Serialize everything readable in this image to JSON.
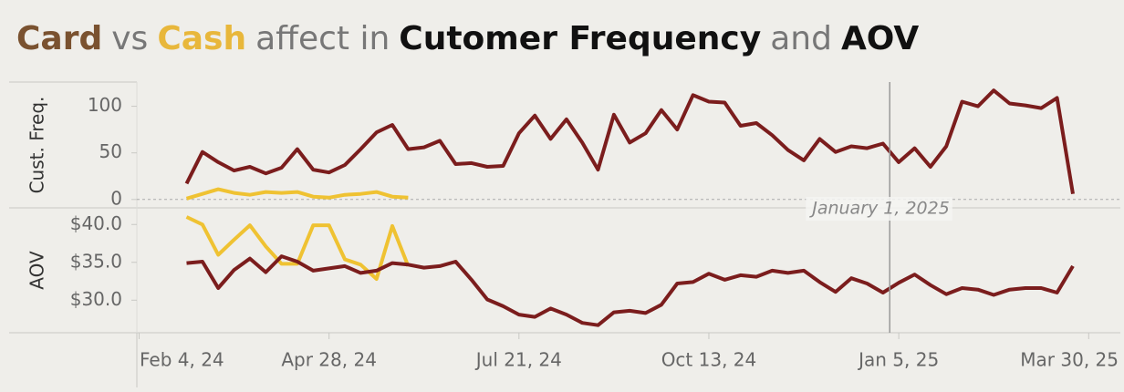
{
  "chart_data": {
    "type": "line",
    "title": [
      {
        "text": "Card",
        "color": "#7a5230",
        "bold": true
      },
      {
        "text": "vs",
        "color": "#777777",
        "bold": false
      },
      {
        "text": "Cash",
        "color": "#e8b73b",
        "bold": true
      },
      {
        "text": "affect in",
        "color": "#777777",
        "bold": false
      },
      {
        "text": "Cutomer Frequency",
        "color": "#111111",
        "bold": true
      },
      {
        "text": "and",
        "color": "#777777",
        "bold": false
      },
      {
        "text": "AOV",
        "color": "#111111",
        "bold": true
      }
    ],
    "x": [
      "2024-02-25",
      "2024-03-03",
      "2024-03-10",
      "2024-03-17",
      "2024-03-24",
      "2024-03-31",
      "2024-04-07",
      "2024-04-14",
      "2024-04-21",
      "2024-04-28",
      "2024-05-05",
      "2024-05-12",
      "2024-05-19",
      "2024-05-26",
      "2024-06-02",
      "2024-06-09",
      "2024-06-16",
      "2024-06-23",
      "2024-06-30",
      "2024-07-07",
      "2024-07-14",
      "2024-07-21",
      "2024-07-28",
      "2024-08-04",
      "2024-08-11",
      "2024-08-18",
      "2024-08-25",
      "2024-09-01",
      "2024-09-08",
      "2024-09-15",
      "2024-09-22",
      "2024-09-29",
      "2024-10-06",
      "2024-10-13",
      "2024-10-20",
      "2024-10-27",
      "2024-11-03",
      "2024-11-10",
      "2024-11-17",
      "2024-11-24",
      "2024-12-01",
      "2024-12-08",
      "2024-12-15",
      "2024-12-22",
      "2024-12-29",
      "2025-01-05",
      "2025-01-12",
      "2025-01-19",
      "2025-01-26",
      "2025-02-02",
      "2025-02-09",
      "2025-02-16",
      "2025-02-23",
      "2025-03-02",
      "2025-03-09",
      "2025-03-16",
      "2025-03-23"
    ],
    "xlim": [
      "2024-02-03",
      "2025-04-13"
    ],
    "xticks": [
      {
        "value": "2024-02-04",
        "label": "Feb 4, 24"
      },
      {
        "value": "2024-04-28",
        "label": "Apr 28, 24"
      },
      {
        "value": "2024-07-21",
        "label": "Jul 21, 24"
      },
      {
        "value": "2024-10-13",
        "label": "Oct 13, 24"
      },
      {
        "value": "2025-01-05",
        "label": "Jan 5, 25"
      },
      {
        "value": "2025-03-30",
        "label": "Mar 30, 25"
      }
    ],
    "reference_line": {
      "value": "2025-01-01",
      "label": "January 1, 2025"
    },
    "panes": [
      {
        "ylabel": "Cust. Freq.",
        "ylim": [
          -9,
          126
        ],
        "yticks": [
          0,
          50,
          100
        ],
        "zero_line": true,
        "series": [
          {
            "name": "Card",
            "color": "#7b1d1d",
            "values": [
              17,
              51,
              40,
              31,
              35,
              28,
              34,
              54,
              32,
              29,
              37,
              54,
              72,
              80,
              54,
              56,
              63,
              38,
              39,
              35,
              36,
              71,
              90,
              65,
              86,
              61,
              32,
              91,
              61,
              71,
              96,
              75,
              112,
              105,
              104,
              79,
              82,
              69,
              53,
              42,
              65,
              51,
              57,
              55,
              60,
              40,
              55,
              35,
              57,
              105,
              100,
              117,
              103,
              101,
              98,
              109,
              6
            ]
          },
          {
            "name": "Cash",
            "color": "#efc232",
            "values": [
              1,
              6,
              11,
              7,
              5,
              8,
              7,
              8,
              3,
              2,
              5,
              6,
              8,
              3,
              2,
              null,
              null,
              null,
              null,
              null,
              null,
              null,
              null,
              null,
              null,
              null,
              null,
              null,
              null,
              null,
              null,
              null,
              null,
              null,
              null,
              null,
              null,
              null,
              null,
              null,
              null,
              null,
              null,
              null,
              null,
              null,
              null,
              null,
              null,
              null,
              null,
              null,
              null,
              null,
              null,
              null,
              null
            ]
          }
        ]
      },
      {
        "ylabel": "AOV",
        "ylim": [
          25.7,
          42.2
        ],
        "yticks": [
          {
            "value": 30,
            "label": "$30.0"
          },
          {
            "value": 35,
            "label": "$35.0"
          },
          {
            "value": 40,
            "label": "$40.0"
          }
        ],
        "zero_line": false,
        "series": [
          {
            "name": "Card",
            "color": "#7b1d1d",
            "values": [
              34.9,
              35.1,
              31.6,
              34.0,
              35.5,
              33.7,
              35.8,
              35.1,
              33.9,
              34.2,
              34.5,
              33.6,
              33.9,
              34.9,
              34.7,
              34.3,
              34.5,
              35.1,
              32.7,
              30.1,
              29.2,
              28.1,
              27.8,
              28.9,
              28.1,
              27.0,
              26.7,
              28.4,
              28.6,
              28.3,
              29.4,
              32.2,
              32.4,
              33.5,
              32.7,
              33.3,
              33.1,
              33.9,
              33.6,
              33.9,
              32.4,
              31.1,
              32.9,
              32.2,
              31.0,
              32.3,
              33.4,
              32.0,
              30.8,
              31.6,
              31.4,
              30.7,
              31.4,
              31.6,
              31.6,
              31.0,
              34.5
            ]
          },
          {
            "name": "Cash",
            "color": "#efc232",
            "values": [
              41.0,
              40.0,
              36.0,
              38.0,
              39.9,
              37.1,
              34.8,
              34.8,
              39.9,
              39.9,
              35.4,
              34.7,
              32.8,
              39.8,
              34.5,
              null,
              null,
              null,
              null,
              null,
              null,
              null,
              null,
              null,
              null,
              null,
              null,
              null,
              null,
              null,
              null,
              null,
              null,
              null,
              null,
              null,
              null,
              null,
              null,
              null,
              null,
              null,
              null,
              null,
              null,
              null,
              null,
              null,
              null,
              null,
              null,
              null,
              null,
              null,
              null,
              null,
              null
            ]
          }
        ]
      }
    ]
  }
}
